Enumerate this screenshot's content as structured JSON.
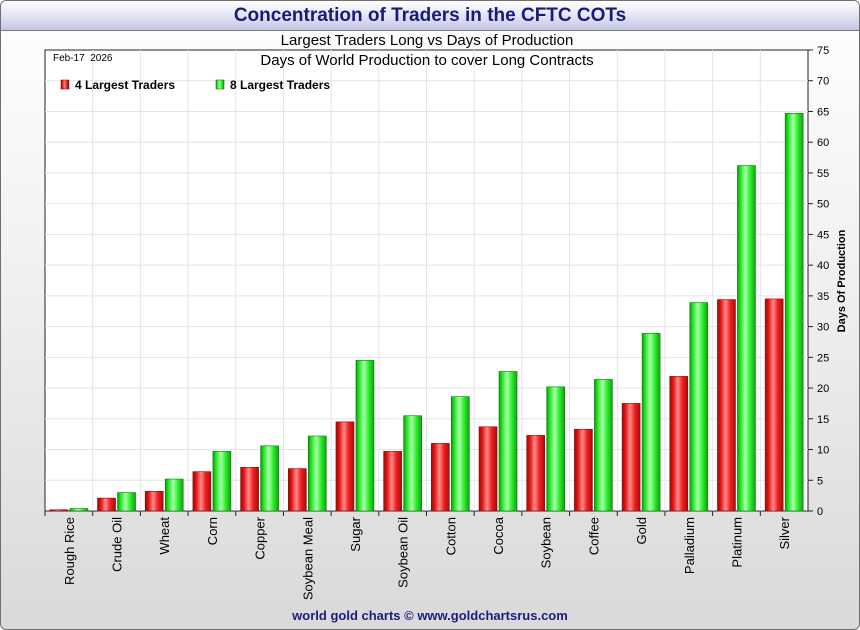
{
  "header": {
    "title": "Concentration of Traders in the CFTC COTs"
  },
  "chart_data": {
    "type": "bar",
    "subtitle": "Largest Traders Long vs Days of Production",
    "subtitle2": "Days of World Production to cover Long Contracts",
    "date_label": "Feb-17  2026",
    "ylabel": "Days Of Production",
    "xlabel": "",
    "ylim": [
      0,
      75
    ],
    "ytick_step": 5,
    "grid": true,
    "legend_position": "top-left",
    "categories": [
      "Rough Rice",
      "Crude Oil",
      "Wheat",
      "Corn",
      "Copper",
      "Soybean Meal",
      "Sugar",
      "Soybean Oil",
      "Cotton",
      "Cocoa",
      "Soybean",
      "Coffee",
      "Gold",
      "Palladium",
      "Platinum",
      "Silver"
    ],
    "series": [
      {
        "name": "4 Largest Traders",
        "color": "#ef1c1c",
        "values": [
          0.2,
          2.1,
          3.2,
          6.4,
          7.1,
          6.9,
          14.5,
          9.7,
          11.0,
          13.7,
          12.3,
          13.3,
          17.5,
          21.9,
          34.4,
          34.5
        ]
      },
      {
        "name": "8 Largest Traders",
        "color": "#22ee22",
        "values": [
          0.4,
          3.0,
          5.2,
          9.7,
          10.6,
          12.2,
          24.5,
          15.5,
          18.6,
          22.7,
          20.2,
          21.4,
          28.9,
          33.9,
          56.2,
          64.7
        ]
      }
    ]
  },
  "footer": {
    "credit": "world gold charts © www.goldchartsrus.com"
  }
}
